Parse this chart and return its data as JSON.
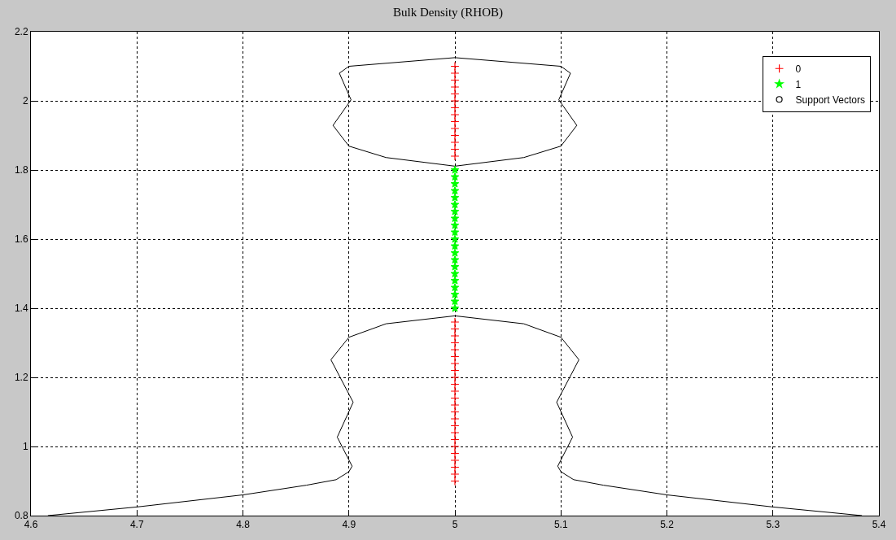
{
  "chart_data": {
    "type": "scatter",
    "title": "Bulk Density (RHOB)",
    "xlim": [
      4.6,
      5.4
    ],
    "xticks": [
      4.6,
      4.7,
      4.8,
      4.9,
      5,
      5.1,
      5.2,
      5.3,
      5.4
    ],
    "ylim": [
      0.8,
      2.2
    ],
    "yticks": [
      0.8,
      1,
      1.2,
      1.4,
      1.6,
      1.8,
      2,
      2.2
    ],
    "grid": true,
    "legend": "top right",
    "series": [
      {
        "type": "line",
        "color": "#000000",
        "x": [
          4.616,
          4.7,
          4.8,
          4.86,
          4.888,
          4.9,
          4.903,
          4.889,
          4.904,
          4.883,
          4.9,
          4.935,
          5,
          5.065,
          5.1,
          5.117,
          5.096,
          5.111,
          5.097,
          5.1,
          5.112,
          5.14,
          5.2,
          5.3,
          5.384
        ],
        "values": [
          0.8,
          0.825,
          0.86,
          0.888,
          0.904,
          0.927,
          0.943,
          1.027,
          1.128,
          1.251,
          1.316,
          1.355,
          1.378,
          1.355,
          1.316,
          1.251,
          1.128,
          1.027,
          0.943,
          0.927,
          0.904,
          0.888,
          0.86,
          0.825,
          0.8
        ]
      },
      {
        "type": "line",
        "color": "#000000",
        "x": [
          4.885,
          4.902,
          4.891,
          4.9,
          5,
          5.1,
          5.109,
          5.098,
          5.115
        ],
        "values": [
          1.929,
          2.003,
          2.08,
          2.1,
          2.125,
          2.1,
          2.08,
          2.003,
          1.929
        ]
      },
      {
        "type": "line",
        "color": "#000000",
        "x": [
          4.885,
          4.9,
          4.935,
          5,
          5.065,
          5.1,
          5.115
        ],
        "values": [
          1.929,
          1.869,
          1.836,
          1.811,
          1.836,
          1.869,
          1.929
        ]
      },
      {
        "name": "0",
        "marker": "cross",
        "color": "#ff0000",
        "x": [
          5,
          5,
          5,
          5,
          5,
          5,
          5,
          5,
          5,
          5,
          5,
          5,
          5,
          5,
          5,
          5,
          5,
          5,
          5,
          5,
          5,
          5,
          5,
          5,
          5,
          5,
          5,
          5,
          5,
          5,
          5,
          5,
          5,
          5,
          5,
          5,
          5,
          5
        ],
        "values": [
          0.9,
          0.92,
          0.94,
          0.96,
          0.98,
          1.0,
          1.02,
          1.04,
          1.06,
          1.08,
          1.1,
          1.12,
          1.14,
          1.16,
          1.18,
          1.2,
          1.22,
          1.24,
          1.26,
          1.28,
          1.3,
          1.32,
          1.34,
          1.36,
          1.84,
          1.86,
          1.88,
          1.9,
          1.92,
          1.94,
          1.96,
          1.98,
          2.0,
          2.02,
          2.04,
          2.06,
          2.08,
          2.1
        ]
      },
      {
        "name": "1",
        "marker": "star",
        "color": "#00ff00",
        "x": [
          5,
          5,
          5,
          5,
          5,
          5,
          5,
          5,
          5,
          5,
          5,
          5,
          5,
          5,
          5,
          5,
          5,
          5,
          5,
          5,
          5
        ],
        "values": [
          1.4,
          1.42,
          1.44,
          1.46,
          1.48,
          1.5,
          1.52,
          1.54,
          1.56,
          1.58,
          1.6,
          1.62,
          1.64,
          1.66,
          1.68,
          1.7,
          1.72,
          1.74,
          1.76,
          1.78,
          1.8
        ]
      },
      {
        "name": "Support Vectors",
        "marker": "circle",
        "color": "#000000"
      }
    ]
  }
}
